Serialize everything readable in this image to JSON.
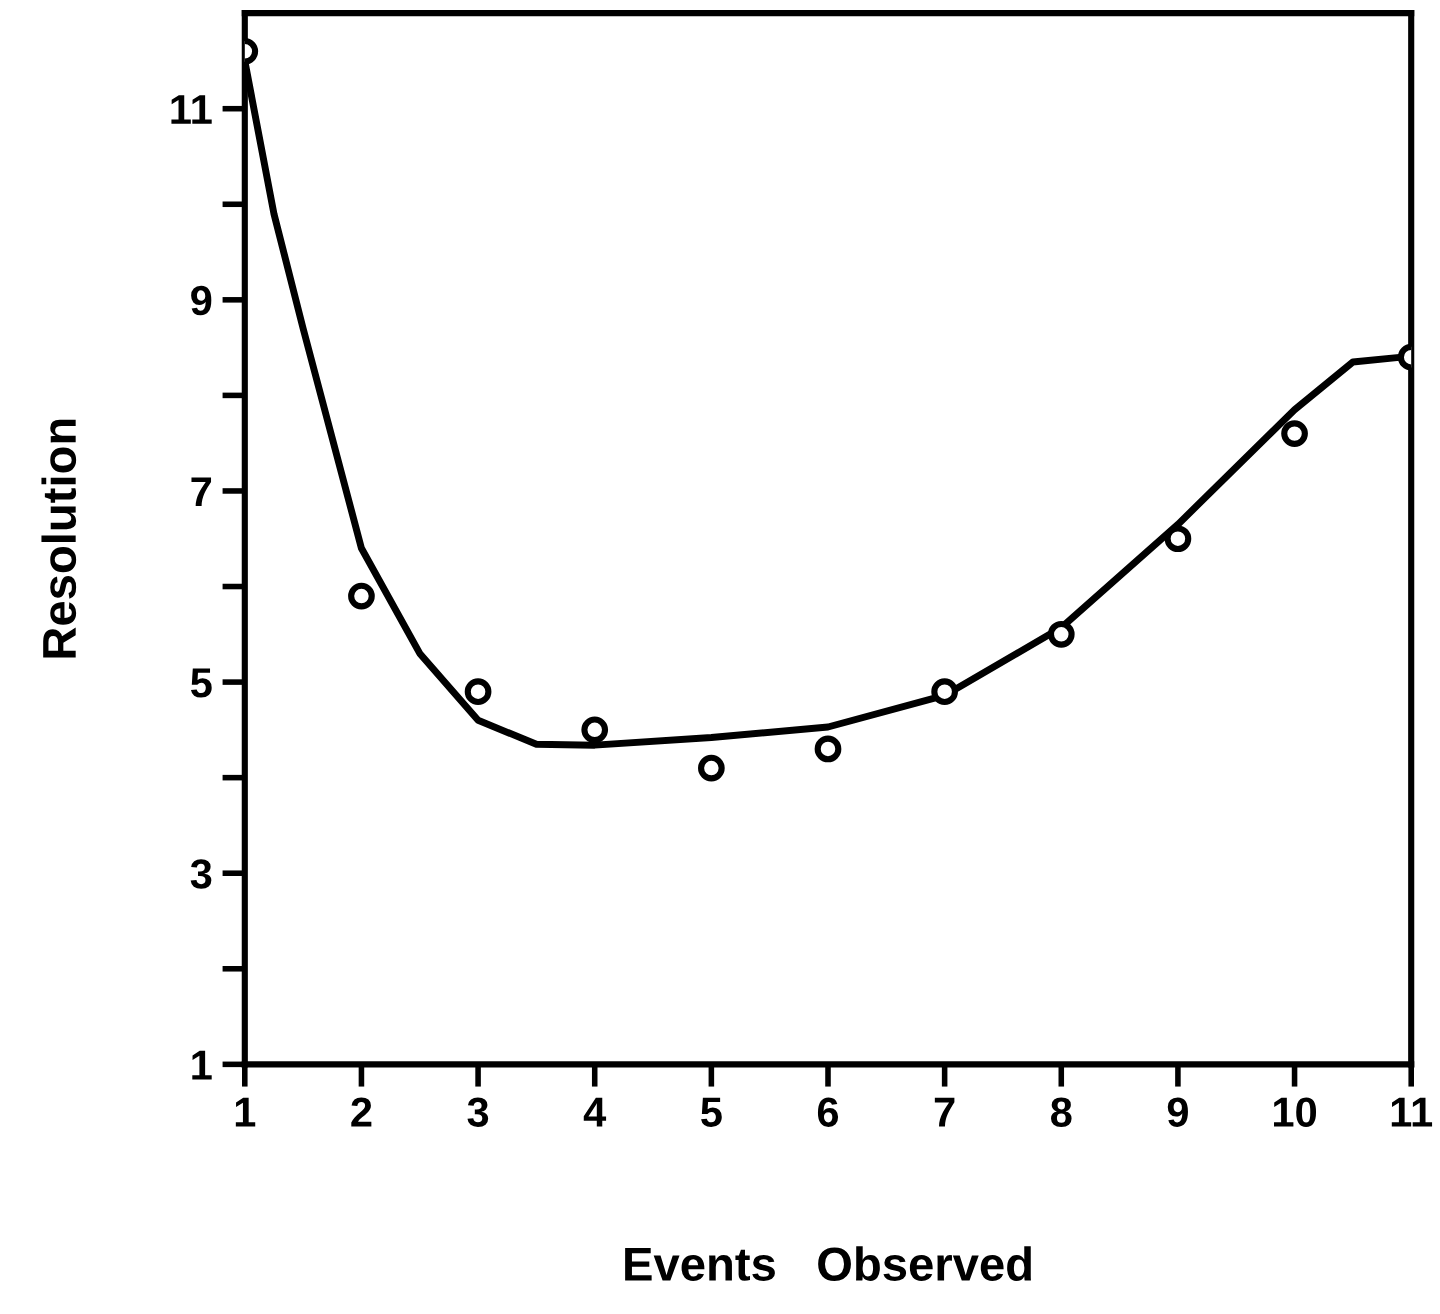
{
  "chart_data": {
    "type": "scatter",
    "xlabel": "Events   Observed",
    "ylabel": "Resolution",
    "x": [
      1,
      2,
      3,
      4,
      5,
      6,
      7,
      8,
      9,
      10,
      11
    ],
    "series": [
      {
        "color": "#000000",
        "marker": "circle",
        "values": [
          11.6,
          5.9,
          4.9,
          4.5,
          4.1,
          4.3,
          4.9,
          5.5,
          6.5,
          7.6,
          8.4
        ]
      },
      {
        "type": "line",
        "color": "#000000",
        "line_style": "solid",
        "marker": "none",
        "x": [
          1,
          1.25,
          1.5,
          2,
          2.5,
          3,
          3.5,
          4,
          5,
          6,
          7,
          8,
          9,
          10,
          10.5,
          11
        ],
        "values": [
          11.5,
          9.9,
          8.7,
          6.4,
          5.3,
          4.6,
          4.35,
          4.34,
          4.42,
          4.53,
          4.86,
          5.57,
          6.65,
          7.85,
          8.35,
          8.41
        ]
      }
    ],
    "xlim": [
      1,
      11
    ],
    "ylim": [
      1,
      12
    ],
    "xticks": [
      1,
      2,
      3,
      4,
      5,
      6,
      7,
      8,
      9,
      10,
      11
    ],
    "yticks": [
      1,
      {
        "value": 2,
        "label": null
      },
      3,
      {
        "value": 4,
        "label": null
      },
      5,
      {
        "value": 6,
        "label": null
      },
      7,
      {
        "value": 8,
        "label": null
      },
      9,
      {
        "value": 10,
        "label": null
      },
      11
    ],
    "grid": false,
    "legend": false
  }
}
